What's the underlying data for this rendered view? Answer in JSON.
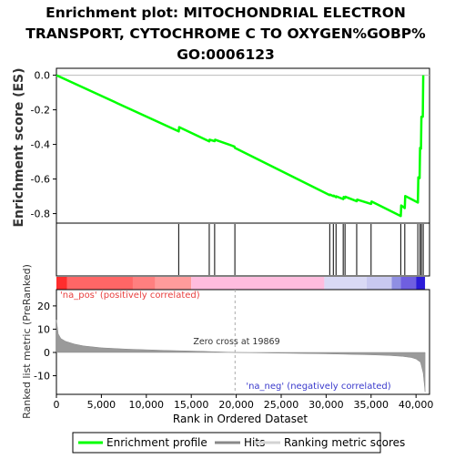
{
  "chart_data": {
    "type": "line",
    "title": "Enrichment plot: MITOCHONDRIAL ELECTRON TRANSPORT, CYTOCHROME C TO OXYGEN%GOBP%GO:0006123",
    "title_lines": [
      "Enrichment plot: MITOCHONDRIAL ELECTRON",
      "TRANSPORT, CYTOCHROME C TO OXYGEN%GOBP%",
      "GO:0006123"
    ],
    "xlabel": "Rank in Ordered Dataset",
    "xlim": [
      0,
      41500
    ],
    "xticks": [
      0,
      5000,
      10000,
      15000,
      20000,
      25000,
      30000,
      35000,
      40000
    ],
    "xtick_labels": [
      "0",
      "5,000",
      "10,000",
      "15,000",
      "20,000",
      "25,000",
      "30,000",
      "35,000",
      "40,000"
    ],
    "es_panel": {
      "ylabel": "Enrichment score (ES)",
      "ylim": [
        -0.855,
        0.04
      ],
      "yticks": [
        0.0,
        -0.2,
        -0.4,
        -0.6,
        -0.8
      ],
      "ytick_labels": [
        "0.0",
        "-0.2",
        "-0.4",
        "-0.6",
        "-0.8"
      ],
      "series": [
        {
          "name": "Enrichment profile",
          "color": "#00ff00",
          "x": [
            0,
            13600,
            13650,
            17000,
            17050,
            17600,
            17650,
            19800,
            19850,
            30400,
            30450,
            30800,
            30850,
            31100,
            31150,
            31900,
            31950,
            32100,
            32150,
            33400,
            33450,
            35000,
            35050,
            38300,
            38350,
            38750,
            38800,
            40200,
            40250,
            40400,
            40450,
            40550,
            40600,
            40750,
            40800
          ],
          "y": [
            0.0,
            -0.325,
            -0.3,
            -0.382,
            -0.373,
            -0.381,
            -0.373,
            -0.412,
            -0.42,
            -0.693,
            -0.69,
            -0.699,
            -0.696,
            -0.705,
            -0.7,
            -0.716,
            -0.704,
            -0.709,
            -0.703,
            -0.728,
            -0.719,
            -0.744,
            -0.73,
            -0.814,
            -0.753,
            -0.768,
            -0.698,
            -0.736,
            -0.59,
            -0.595,
            -0.42,
            -0.425,
            -0.24,
            -0.24,
            0.0
          ]
        }
      ]
    },
    "hits": {
      "name": "Hits",
      "color": "#000000",
      "x": [
        13600,
        17000,
        17600,
        19850,
        30400,
        30800,
        31100,
        31900,
        32100,
        33400,
        35000,
        38300,
        38750,
        40200,
        40450,
        40600,
        40800
      ]
    },
    "ranking_panel": {
      "ylabel": "Ranked list metric (PreRanked)",
      "ylim": [
        -18,
        27
      ],
      "yticks": [
        20,
        10,
        0,
        -10
      ],
      "ytick_labels": [
        "20",
        "10",
        "0",
        "-10"
      ],
      "zero_cross": 19869,
      "x": [
        0,
        200,
        500,
        1000,
        2000,
        3000,
        5000,
        8000,
        12000,
        16000,
        19869,
        25000,
        30000,
        35000,
        37000,
        38500,
        39500,
        40000,
        40500,
        40800,
        41000
      ],
      "y": [
        14,
        8,
        6,
        4.8,
        3.6,
        2.8,
        2.0,
        1.4,
        0.9,
        0.5,
        0.0,
        -0.3,
        -0.6,
        -1.0,
        -1.3,
        -1.7,
        -2.2,
        -2.8,
        -4.2,
        -9,
        -17
      ]
    },
    "annotations": {
      "zero_cross": "Zero cross at 19869",
      "na_pos": "'na_pos' (positively correlated)",
      "na_neg": "'na_neg' (negatively correlated)"
    },
    "legend": {
      "placement": "bottom",
      "entries": [
        {
          "label": "Enrichment profile",
          "color": "#00ff00"
        },
        {
          "label": "Hits",
          "color": "#000000"
        },
        {
          "label": "Ranking metric scores",
          "color": "#d3d3d3"
        }
      ]
    },
    "colorbar": {
      "segments": [
        {
          "from": 0,
          "to": 1200,
          "color": "#ff2d2d"
        },
        {
          "from": 1200,
          "to": 8500,
          "color": "#ff6666"
        },
        {
          "from": 8500,
          "to": 11000,
          "color": "#ff7f7f"
        },
        {
          "from": 11000,
          "to": 15000,
          "color": "#ff9b9b"
        },
        {
          "from": 15000,
          "to": 29800,
          "color": "#ffbcde"
        },
        {
          "from": 29800,
          "to": 34500,
          "color": "#d9d9f5"
        },
        {
          "from": 34500,
          "to": 37300,
          "color": "#c8c8f0"
        },
        {
          "from": 37300,
          "to": 38300,
          "color": "#8f8fe3"
        },
        {
          "from": 38300,
          "to": 40000,
          "color": "#6f5fe0"
        },
        {
          "from": 40000,
          "to": 41000,
          "color": "#2b1bd8"
        }
      ]
    }
  }
}
